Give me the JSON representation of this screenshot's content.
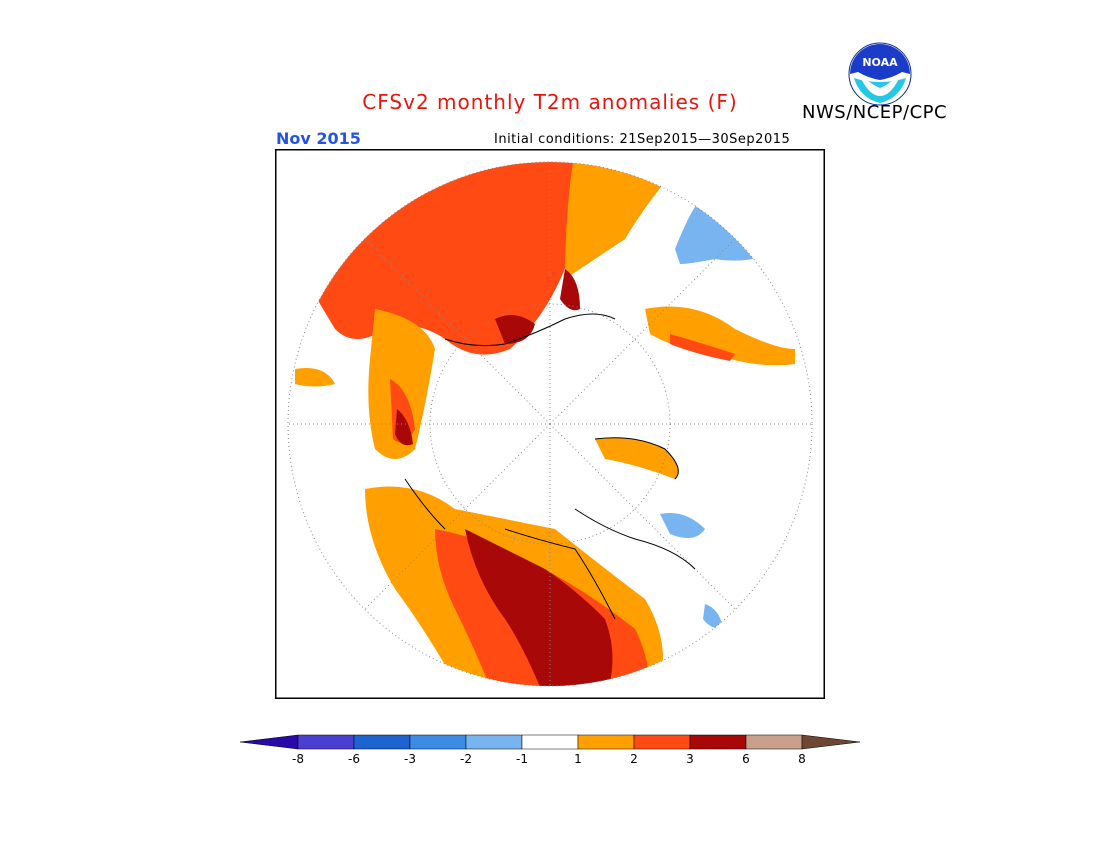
{
  "title": "CFSv2 monthly T2m anomalies (F)",
  "agency": "NWS/NCEP/CPC",
  "logo_text": "NOAA",
  "month_label": "Nov 2015",
  "initial_conditions": "Initial conditions: 21Sep2015—30Sep2015",
  "colorbar": {
    "ticks": [
      "-8",
      "-6",
      "-3",
      "-2",
      "-1",
      "1",
      "2",
      "3",
      "6",
      "8"
    ],
    "colors": [
      "#2a0aa8",
      "#4a3fd0",
      "#1e64d0",
      "#3c8ce6",
      "#78b4f0",
      "#ffffff",
      "#ffa000",
      "#ff4a14",
      "#a80808",
      "#c8a08c",
      "#6e4632"
    ]
  },
  "map": {
    "projection": "north polar stereographic",
    "legend_colors": {
      "anom_1_2": "#ffa000",
      "anom_2_3": "#ff4a14",
      "anom_3_6": "#a80808",
      "anom_m1_m2": "#78b4f0",
      "neutral": "#ffffff"
    }
  }
}
